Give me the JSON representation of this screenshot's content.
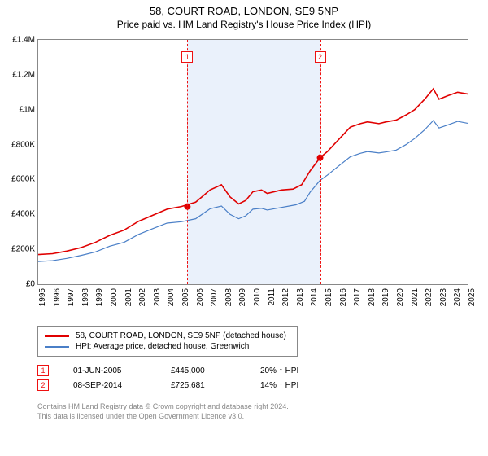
{
  "title": "58, COURT ROAD, LONDON, SE9 5NP",
  "subtitle": "Price paid vs. HM Land Registry's House Price Index (HPI)",
  "chart": {
    "type": "line",
    "background_color": "#ffffff",
    "border_color": "#888888",
    "y": {
      "min": 0,
      "max": 1400000,
      "step": 200000,
      "labels": [
        "£0",
        "£200K",
        "£400K",
        "£600K",
        "£800K",
        "£1M",
        "£1.2M",
        "£1.4M"
      ],
      "tick_fontsize": 10
    },
    "x": {
      "min": 1995,
      "max": 2025,
      "step": 1,
      "labels": [
        "1995",
        "1996",
        "1997",
        "1998",
        "1999",
        "2000",
        "2001",
        "2002",
        "2003",
        "2004",
        "2005",
        "2006",
        "2007",
        "2008",
        "2009",
        "2010",
        "2011",
        "2012",
        "2013",
        "2014",
        "2015",
        "2016",
        "2017",
        "2018",
        "2019",
        "2020",
        "2021",
        "2022",
        "2023",
        "2024",
        "2025"
      ],
      "tick_fontsize": 10
    },
    "shaded_region": {
      "x_from": 2005.42,
      "x_to": 2014.69,
      "color": "#eaf1fb"
    },
    "markers": [
      {
        "n": "1",
        "x": 2005.42,
        "line_color": "#e11",
        "box_color": "#e11"
      },
      {
        "n": "2",
        "x": 2014.69,
        "line_color": "#e11",
        "box_color": "#e11"
      }
    ],
    "series": [
      {
        "name": "red",
        "color": "#e00000",
        "line_width": 1.6,
        "xy": [
          [
            1995,
            170000
          ],
          [
            1996,
            175000
          ],
          [
            1997,
            190000
          ],
          [
            1998,
            210000
          ],
          [
            1999,
            240000
          ],
          [
            2000,
            280000
          ],
          [
            2001,
            310000
          ],
          [
            2002,
            360000
          ],
          [
            2003,
            395000
          ],
          [
            2004,
            430000
          ],
          [
            2005,
            445000
          ],
          [
            2006,
            470000
          ],
          [
            2007,
            540000
          ],
          [
            2007.8,
            570000
          ],
          [
            2008.4,
            500000
          ],
          [
            2009,
            460000
          ],
          [
            2009.5,
            480000
          ],
          [
            2010,
            530000
          ],
          [
            2010.6,
            540000
          ],
          [
            2011,
            520000
          ],
          [
            2012,
            540000
          ],
          [
            2012.8,
            545000
          ],
          [
            2013.4,
            570000
          ],
          [
            2014,
            650000
          ],
          [
            2014.69,
            725000
          ],
          [
            2015.2,
            760000
          ],
          [
            2016,
            830000
          ],
          [
            2016.8,
            900000
          ],
          [
            2017.5,
            920000
          ],
          [
            2018,
            930000
          ],
          [
            2018.8,
            920000
          ],
          [
            2019.3,
            930000
          ],
          [
            2020,
            940000
          ],
          [
            2020.7,
            970000
          ],
          [
            2021.3,
            1000000
          ],
          [
            2022,
            1060000
          ],
          [
            2022.6,
            1120000
          ],
          [
            2023,
            1060000
          ],
          [
            2023.6,
            1080000
          ],
          [
            2024.3,
            1100000
          ],
          [
            2025,
            1090000
          ]
        ]
      },
      {
        "name": "blue",
        "color": "#4a7fc7",
        "line_width": 1.2,
        "xy": [
          [
            1995,
            130000
          ],
          [
            1996,
            135000
          ],
          [
            1997,
            148000
          ],
          [
            1998,
            165000
          ],
          [
            1999,
            185000
          ],
          [
            2000,
            218000
          ],
          [
            2001,
            240000
          ],
          [
            2002,
            285000
          ],
          [
            2003,
            318000
          ],
          [
            2004,
            350000
          ],
          [
            2005,
            358000
          ],
          [
            2006,
            375000
          ],
          [
            2007,
            432000
          ],
          [
            2007.8,
            448000
          ],
          [
            2008.4,
            400000
          ],
          [
            2009,
            375000
          ],
          [
            2009.5,
            392000
          ],
          [
            2010,
            430000
          ],
          [
            2010.6,
            435000
          ],
          [
            2011,
            425000
          ],
          [
            2012,
            440000
          ],
          [
            2013,
            455000
          ],
          [
            2013.6,
            475000
          ],
          [
            2014,
            528000
          ],
          [
            2014.69,
            595000
          ],
          [
            2015.2,
            625000
          ],
          [
            2016,
            678000
          ],
          [
            2016.8,
            730000
          ],
          [
            2017.5,
            750000
          ],
          [
            2018,
            760000
          ],
          [
            2018.8,
            752000
          ],
          [
            2019.3,
            758000
          ],
          [
            2020,
            768000
          ],
          [
            2020.7,
            800000
          ],
          [
            2021.3,
            835000
          ],
          [
            2022,
            885000
          ],
          [
            2022.6,
            938000
          ],
          [
            2023,
            895000
          ],
          [
            2023.6,
            912000
          ],
          [
            2024.3,
            933000
          ],
          [
            2025,
            922000
          ]
        ]
      }
    ],
    "points": [
      {
        "x": 2005.42,
        "y": 445000,
        "color": "#e00000",
        "r": 4
      },
      {
        "x": 2014.69,
        "y": 725000,
        "color": "#e00000",
        "r": 4
      }
    ]
  },
  "legend": {
    "items": [
      {
        "color": "#e00000",
        "label": "58, COURT ROAD, LONDON, SE9 5NP (detached house)"
      },
      {
        "color": "#4a7fc7",
        "label": "HPI: Average price, detached house, Greenwich"
      }
    ]
  },
  "annotations": [
    {
      "n": "1",
      "box_color": "#e11",
      "date": "01-JUN-2005",
      "price": "£445,000",
      "vs_hpi": "20% ↑ HPI"
    },
    {
      "n": "2",
      "box_color": "#e11",
      "date": "08-SEP-2014",
      "price": "£725,681",
      "vs_hpi": "14% ↑ HPI"
    }
  ],
  "footnote": {
    "line1": "Contains HM Land Registry data © Crown copyright and database right 2024.",
    "line2": "This data is licensed under the Open Government Licence v3.0."
  }
}
